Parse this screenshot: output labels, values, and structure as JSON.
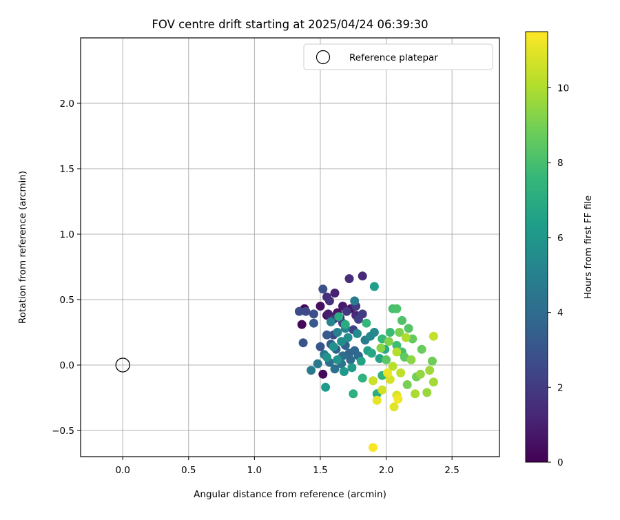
{
  "chart_data": {
    "type": "scatter",
    "title": "FOV centre drift starting at 2025/04/24 06:39:30",
    "xlabel": "Angular distance from reference (arcmin)",
    "ylabel": "Rotation from reference (arcmin)",
    "xlim": [
      -0.32,
      2.86
    ],
    "ylim": [
      -0.7,
      2.5
    ],
    "xticks": [
      0.0,
      0.5,
      1.0,
      1.5,
      2.0,
      2.5
    ],
    "xtick_labels": [
      "0.0",
      "0.5",
      "1.0",
      "1.5",
      "2.0",
      "2.5"
    ],
    "yticks": [
      -0.5,
      0.0,
      0.5,
      1.0,
      1.5,
      2.0
    ],
    "ytick_labels": [
      "−0.5",
      "0.0",
      "0.5",
      "1.0",
      "1.5",
      "2.0"
    ],
    "grid": true,
    "legend": {
      "position": "top-right",
      "entries": [
        "Reference platepar"
      ]
    },
    "reference_point": {
      "x": 0.0,
      "y": 0.0,
      "label": "Reference platepar"
    },
    "colorbar": {
      "label": "Hours from first FF file",
      "range": [
        0,
        11.5
      ],
      "ticks": [
        0,
        2,
        4,
        6,
        8,
        10
      ],
      "tick_labels": [
        "0",
        "2",
        "4",
        "6",
        "8",
        "10"
      ],
      "colormap": "viridis",
      "colors": [
        "#440154",
        "#482878",
        "#3e4989",
        "#31688e",
        "#26828e",
        "#1f9e89",
        "#35b779",
        "#6ece58",
        "#b5de2b",
        "#fde725"
      ]
    },
    "points": [
      {
        "x": 1.38,
        "y": 0.43,
        "h": 0.1
      },
      {
        "x": 1.36,
        "y": 0.31,
        "h": 0.2
      },
      {
        "x": 1.52,
        "y": -0.07,
        "h": 0.3
      },
      {
        "x": 1.55,
        "y": 0.38,
        "h": 0.4
      },
      {
        "x": 1.5,
        "y": 0.45,
        "h": 0.5
      },
      {
        "x": 1.63,
        "y": 0.4,
        "h": 0.6
      },
      {
        "x": 1.73,
        "y": 0.43,
        "h": 0.7
      },
      {
        "x": 1.67,
        "y": 0.45,
        "h": 0.8
      },
      {
        "x": 1.56,
        "y": 0.39,
        "h": 0.9
      },
      {
        "x": 1.58,
        "y": 0.37,
        "h": 1.0
      },
      {
        "x": 1.61,
        "y": 0.55,
        "h": 1.1
      },
      {
        "x": 1.65,
        "y": 0.36,
        "h": 1.2
      },
      {
        "x": 1.77,
        "y": 0.38,
        "h": 1.3
      },
      {
        "x": 1.82,
        "y": 0.68,
        "h": 1.4
      },
      {
        "x": 1.72,
        "y": 0.66,
        "h": 1.5
      },
      {
        "x": 1.55,
        "y": 0.52,
        "h": 1.6
      },
      {
        "x": 1.57,
        "y": 0.49,
        "h": 1.7
      },
      {
        "x": 1.6,
        "y": 0.35,
        "h": 1.8
      },
      {
        "x": 1.7,
        "y": 0.41,
        "h": 1.9
      },
      {
        "x": 1.77,
        "y": 0.45,
        "h": 2.0
      },
      {
        "x": 1.82,
        "y": 0.39,
        "h": 2.1
      },
      {
        "x": 1.79,
        "y": 0.35,
        "h": 2.2
      },
      {
        "x": 1.75,
        "y": 0.27,
        "h": 2.3
      },
      {
        "x": 1.67,
        "y": 0.32,
        "h": 2.4
      },
      {
        "x": 1.6,
        "y": 0.23,
        "h": 2.5
      },
      {
        "x": 1.39,
        "y": 0.41,
        "h": 2.6
      },
      {
        "x": 1.34,
        "y": 0.41,
        "h": 2.7
      },
      {
        "x": 1.45,
        "y": 0.39,
        "h": 2.8
      },
      {
        "x": 1.52,
        "y": 0.58,
        "h": 2.9
      },
      {
        "x": 1.37,
        "y": 0.17,
        "h": 3.0
      },
      {
        "x": 1.5,
        "y": 0.14,
        "h": 3.1
      },
      {
        "x": 1.45,
        "y": 0.32,
        "h": 3.2
      },
      {
        "x": 1.55,
        "y": 0.23,
        "h": 3.3
      },
      {
        "x": 1.58,
        "y": 0.16,
        "h": 3.4
      },
      {
        "x": 1.62,
        "y": 0.12,
        "h": 3.5
      },
      {
        "x": 1.69,
        "y": 0.15,
        "h": 3.6
      },
      {
        "x": 1.72,
        "y": 0.09,
        "h": 3.7
      },
      {
        "x": 1.76,
        "y": 0.11,
        "h": 3.8
      },
      {
        "x": 1.79,
        "y": 0.07,
        "h": 3.9
      },
      {
        "x": 1.73,
        "y": 0.04,
        "h": 4.0
      },
      {
        "x": 1.67,
        "y": 0.07,
        "h": 4.1
      },
      {
        "x": 1.57,
        "y": 0.02,
        "h": 4.2
      },
      {
        "x": 1.61,
        "y": -0.03,
        "h": 4.3
      },
      {
        "x": 1.66,
        "y": 0.01,
        "h": 4.4
      },
      {
        "x": 1.53,
        "y": 0.08,
        "h": 4.5
      },
      {
        "x": 1.48,
        "y": 0.01,
        "h": 4.6
      },
      {
        "x": 1.43,
        "y": -0.04,
        "h": 4.7
      },
      {
        "x": 1.76,
        "y": 0.49,
        "h": 4.8
      },
      {
        "x": 1.84,
        "y": 0.19,
        "h": 4.9
      },
      {
        "x": 1.63,
        "y": 0.25,
        "h": 5.0
      },
      {
        "x": 1.69,
        "y": 0.28,
        "h": 5.1
      },
      {
        "x": 1.58,
        "y": 0.33,
        "h": 5.2
      },
      {
        "x": 1.88,
        "y": 0.22,
        "h": 5.3
      },
      {
        "x": 1.91,
        "y": 0.25,
        "h": 5.4
      },
      {
        "x": 1.78,
        "y": 0.24,
        "h": 5.5
      },
      {
        "x": 1.66,
        "y": 0.18,
        "h": 5.6
      },
      {
        "x": 1.71,
        "y": 0.21,
        "h": 5.7
      },
      {
        "x": 1.6,
        "y": 0.14,
        "h": 5.8
      },
      {
        "x": 1.55,
        "y": 0.06,
        "h": 5.9
      },
      {
        "x": 1.63,
        "y": 0.04,
        "h": 6.0
      },
      {
        "x": 1.68,
        "y": -0.05,
        "h": 6.1
      },
      {
        "x": 1.74,
        "y": -0.02,
        "h": 6.2
      },
      {
        "x": 1.54,
        "y": -0.17,
        "h": 6.3
      },
      {
        "x": 1.91,
        "y": 0.6,
        "h": 6.4
      },
      {
        "x": 1.86,
        "y": 0.11,
        "h": 6.5
      },
      {
        "x": 1.81,
        "y": 0.03,
        "h": 6.6
      },
      {
        "x": 1.95,
        "y": 0.05,
        "h": 6.7
      },
      {
        "x": 1.89,
        "y": 0.09,
        "h": 6.8
      },
      {
        "x": 1.99,
        "y": 0.12,
        "h": 6.9
      },
      {
        "x": 1.64,
        "y": 0.37,
        "h": 7.0
      },
      {
        "x": 1.69,
        "y": 0.31,
        "h": 7.1
      },
      {
        "x": 1.93,
        "y": -0.22,
        "h": 7.2
      },
      {
        "x": 1.75,
        "y": -0.22,
        "h": 7.3
      },
      {
        "x": 1.82,
        "y": -0.1,
        "h": 7.4
      },
      {
        "x": 1.97,
        "y": -0.08,
        "h": 7.5
      },
      {
        "x": 1.85,
        "y": 0.32,
        "h": 7.6
      },
      {
        "x": 1.97,
        "y": 0.2,
        "h": 7.7
      },
      {
        "x": 2.03,
        "y": 0.25,
        "h": 7.8
      },
      {
        "x": 2.08,
        "y": 0.15,
        "h": 7.9
      },
      {
        "x": 2.12,
        "y": 0.1,
        "h": 8.0
      },
      {
        "x": 2.05,
        "y": 0.43,
        "h": 8.1
      },
      {
        "x": 2.08,
        "y": 0.43,
        "h": 8.2
      },
      {
        "x": 2.12,
        "y": 0.34,
        "h": 8.3
      },
      {
        "x": 2.17,
        "y": 0.28,
        "h": 8.4
      },
      {
        "x": 2.0,
        "y": 0.04,
        "h": 8.5
      },
      {
        "x": 2.14,
        "y": 0.06,
        "h": 8.6
      },
      {
        "x": 2.2,
        "y": 0.2,
        "h": 8.7
      },
      {
        "x": 2.27,
        "y": 0.12,
        "h": 8.8
      },
      {
        "x": 2.35,
        "y": 0.03,
        "h": 8.9
      },
      {
        "x": 2.23,
        "y": -0.09,
        "h": 9.0
      },
      {
        "x": 2.16,
        "y": -0.15,
        "h": 9.1
      },
      {
        "x": 2.1,
        "y": 0.25,
        "h": 9.2
      },
      {
        "x": 2.02,
        "y": 0.18,
        "h": 9.3
      },
      {
        "x": 1.96,
        "y": 0.13,
        "h": 9.4
      },
      {
        "x": 2.19,
        "y": 0.04,
        "h": 9.5
      },
      {
        "x": 2.26,
        "y": -0.07,
        "h": 9.6
      },
      {
        "x": 2.31,
        "y": -0.21,
        "h": 9.7
      },
      {
        "x": 2.33,
        "y": -0.04,
        "h": 9.8
      },
      {
        "x": 2.36,
        "y": -0.13,
        "h": 9.9
      },
      {
        "x": 2.22,
        "y": -0.22,
        "h": 10.0
      },
      {
        "x": 2.15,
        "y": 0.21,
        "h": 10.1
      },
      {
        "x": 2.08,
        "y": 0.1,
        "h": 10.2
      },
      {
        "x": 2.05,
        "y": -0.01,
        "h": 10.3
      },
      {
        "x": 2.11,
        "y": -0.06,
        "h": 10.4
      },
      {
        "x": 2.36,
        "y": 0.22,
        "h": 10.5
      },
      {
        "x": 1.9,
        "y": -0.12,
        "h": 10.6
      },
      {
        "x": 1.97,
        "y": -0.19,
        "h": 10.7
      },
      {
        "x": 2.03,
        "y": -0.11,
        "h": 10.8
      },
      {
        "x": 2.08,
        "y": -0.23,
        "h": 10.9
      },
      {
        "x": 2.06,
        "y": -0.32,
        "h": 11.0
      },
      {
        "x": 1.93,
        "y": -0.27,
        "h": 11.1
      },
      {
        "x": 2.01,
        "y": -0.06,
        "h": 11.2
      },
      {
        "x": 2.09,
        "y": -0.26,
        "h": 11.3
      },
      {
        "x": 1.9,
        "y": -0.63,
        "h": 11.4
      }
    ]
  }
}
